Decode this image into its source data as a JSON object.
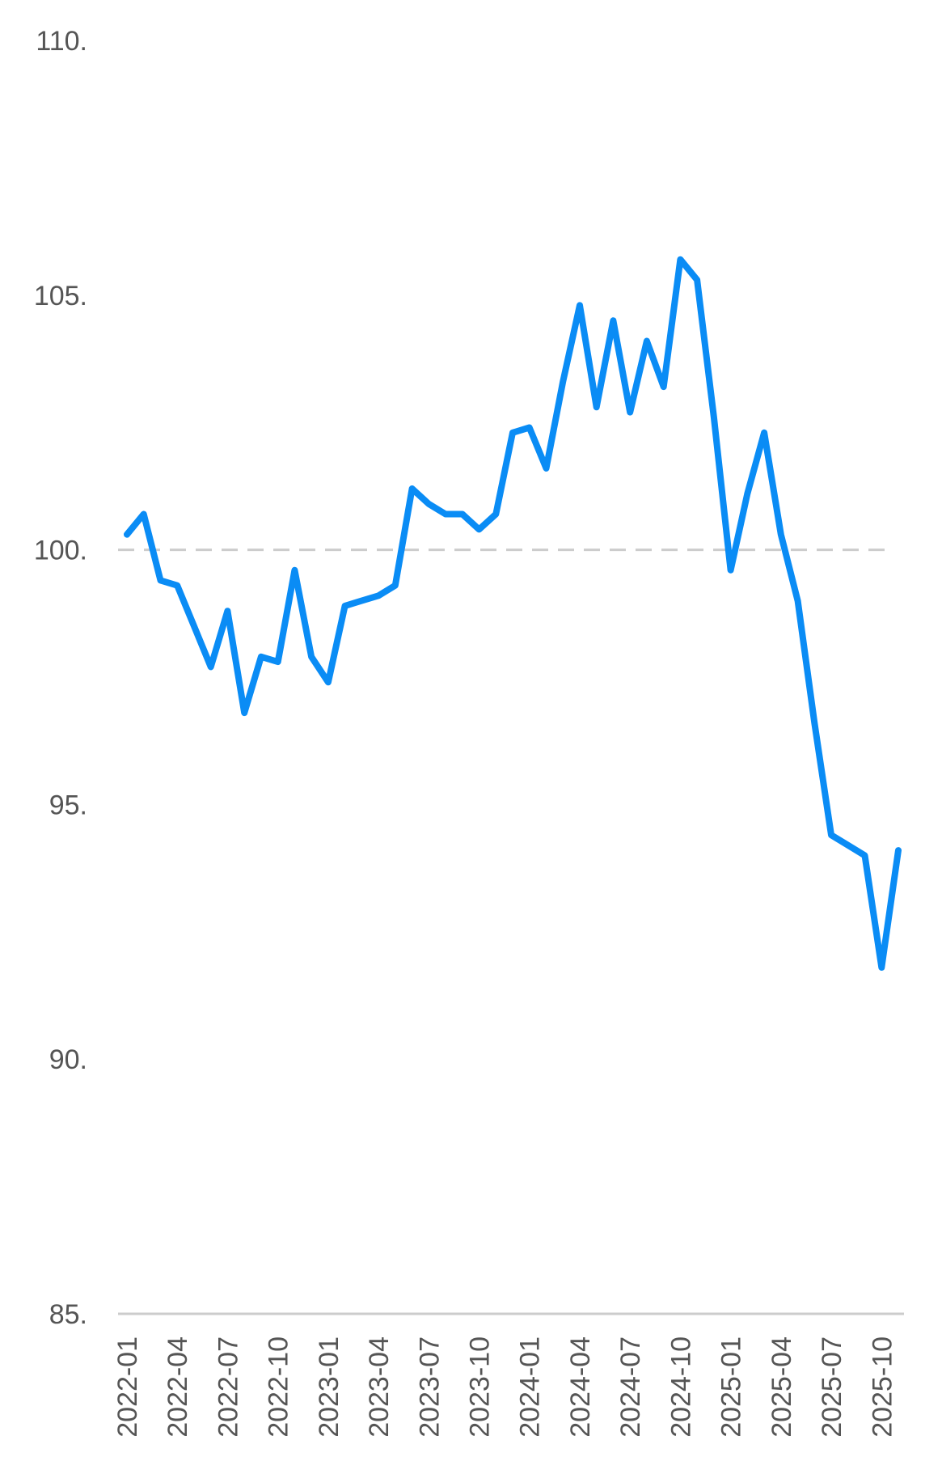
{
  "chart_data": {
    "type": "line",
    "title": "",
    "xlabel": "",
    "ylabel": "",
    "ylim": [
      85,
      110
    ],
    "y_ticks": [
      "110.",
      "105.",
      "100.",
      "95.",
      "90.",
      "85."
    ],
    "y_tick_values": [
      110,
      105,
      100,
      95,
      90,
      85
    ],
    "x_tick_labels": [
      "2022-01",
      "2022-04",
      "2022-07",
      "2022-10",
      "2023-01",
      "2023-04",
      "2023-07",
      "2023-10",
      "2024-01",
      "2024-04",
      "2024-07",
      "2024-10",
      "2025-01",
      "2025-04",
      "2025-07",
      "2025-10"
    ],
    "x_tick_indices": [
      0,
      3,
      6,
      9,
      12,
      15,
      18,
      21,
      24,
      27,
      30,
      33,
      36,
      39,
      42,
      45
    ],
    "reference_line": 100,
    "grid": false,
    "series_color": "#0a8cf5",
    "series": [
      {
        "values": [
          100.3,
          100.7,
          99.4,
          99.3,
          98.5,
          97.7,
          98.8,
          96.8,
          97.9,
          97.8,
          99.6,
          97.9,
          97.4,
          98.9,
          99.0,
          99.1,
          99.3,
          101.2,
          100.9,
          100.7,
          100.7,
          100.4,
          100.7,
          102.3,
          102.4,
          101.6,
          103.3,
          104.8,
          102.8,
          104.5,
          102.7,
          104.1,
          103.2,
          105.7,
          105.3,
          102.6,
          99.6,
          101.1,
          102.3,
          100.3,
          99.0,
          96.6,
          94.4,
          94.2,
          94.0,
          91.8,
          94.1
        ]
      }
    ]
  }
}
